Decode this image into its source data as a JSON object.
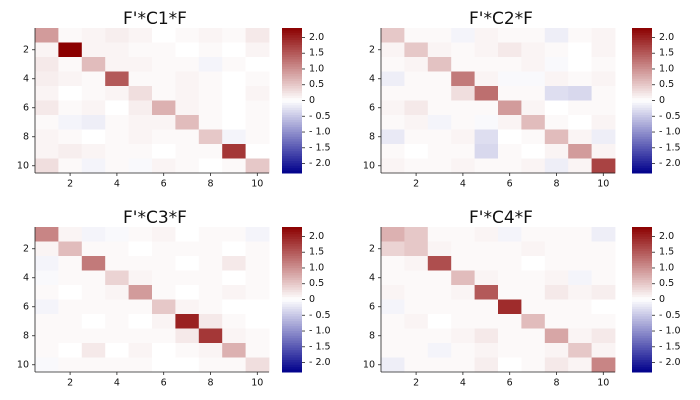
{
  "chart_data": [
    {
      "type": "heatmap",
      "title": "F'*C1*F",
      "x_ticks": [
        "2",
        "4",
        "6",
        "8",
        "10"
      ],
      "y_ticks": [
        "2",
        "4",
        "6",
        "8",
        "10"
      ],
      "colorbar_ticks": [
        "2.0",
        "1.5",
        "1.0",
        "0.5",
        "0",
        "- 0.5",
        "- 1.0",
        "- 1.5",
        "- 2.0"
      ],
      "zlim": [
        -2.3,
        2.3
      ],
      "colormap": [
        "#00008b",
        "#ffffff",
        "#8b0000"
      ],
      "matrix": [
        [
          0.9,
          0.05,
          0.1,
          0.15,
          0.1,
          0.0,
          0.05,
          0.1,
          0.05,
          0.2
        ],
        [
          0.1,
          2.3,
          0.1,
          0.1,
          0.05,
          0.05,
          0.0,
          0.05,
          0.0,
          0.1
        ],
        [
          0.2,
          0.05,
          0.6,
          0.1,
          0.1,
          0.05,
          0.05,
          -0.1,
          0.05,
          0.0
        ],
        [
          0.15,
          0.1,
          0.05,
          1.5,
          0.05,
          0.05,
          0.1,
          0.05,
          0.0,
          0.05
        ],
        [
          0.1,
          0.0,
          0.05,
          0.1,
          0.3,
          0.05,
          0.1,
          0.05,
          0.0,
          0.1
        ],
        [
          0.2,
          0.05,
          0.1,
          0.0,
          0.15,
          0.7,
          0.1,
          0.05,
          0.0,
          0.05
        ],
        [
          0.05,
          -0.1,
          -0.15,
          0.05,
          0.1,
          0.1,
          0.6,
          0.05,
          0.0,
          0.05
        ],
        [
          0.1,
          0.05,
          0.0,
          0.05,
          0.1,
          0.05,
          0.05,
          0.5,
          -0.1,
          0.05
        ],
        [
          0.1,
          0.15,
          0.1,
          0.05,
          0.05,
          0.0,
          0.05,
          0.05,
          1.8,
          0.0
        ],
        [
          0.3,
          0.05,
          -0.1,
          0.05,
          -0.05,
          0.1,
          0.05,
          0.0,
          0.05,
          0.5
        ]
      ]
    },
    {
      "type": "heatmap",
      "title": "F'*C2*F",
      "x_ticks": [
        "2",
        "4",
        "6",
        "8",
        "10"
      ],
      "y_ticks": [
        "2",
        "4",
        "6",
        "8",
        "10"
      ],
      "colorbar_ticks": [
        "2.0",
        "1.5",
        "1.0",
        "0.5",
        "0",
        "- 0.5",
        "- 1.0",
        "- 1.5",
        "- 2.0"
      ],
      "zlim": [
        -2.3,
        2.3
      ],
      "colormap": [
        "#00008b",
        "#ffffff",
        "#8b0000"
      ],
      "matrix": [
        [
          0.5,
          0.05,
          0.05,
          -0.1,
          0.1,
          0.05,
          0.05,
          -0.15,
          0.05,
          0.1
        ],
        [
          0.1,
          0.5,
          0.1,
          0.05,
          0.1,
          0.2,
          0.1,
          0.05,
          0.0,
          0.1
        ],
        [
          0.05,
          0.1,
          0.55,
          0.05,
          0.05,
          0.05,
          0.1,
          -0.05,
          0.0,
          0.05
        ],
        [
          -0.15,
          0.05,
          0.05,
          1.2,
          0.1,
          -0.05,
          -0.05,
          0.1,
          0.05,
          0.1
        ],
        [
          0.05,
          0.05,
          0.05,
          0.3,
          1.3,
          0.05,
          0.05,
          -0.3,
          -0.35,
          0.05
        ],
        [
          0.1,
          0.2,
          0.05,
          0.05,
          0.05,
          0.9,
          0.1,
          0.0,
          0.05,
          0.05
        ],
        [
          0.05,
          0.1,
          -0.1,
          0.05,
          -0.05,
          0.1,
          0.6,
          0.05,
          0.0,
          0.1
        ],
        [
          -0.2,
          0.05,
          0.05,
          0.1,
          -0.3,
          0.0,
          0.05,
          0.6,
          0.1,
          -0.15
        ],
        [
          0.05,
          0.0,
          0.05,
          0.05,
          -0.35,
          0.05,
          0.0,
          0.1,
          0.9,
          0.1
        ],
        [
          0.1,
          0.05,
          0.05,
          0.1,
          0.05,
          0.05,
          0.1,
          -0.15,
          0.1,
          1.7
        ]
      ]
    },
    {
      "type": "heatmap",
      "title": "F'*C3*F",
      "x_ticks": [
        "2",
        "4",
        "6",
        "8",
        "10"
      ],
      "y_ticks": [
        "2",
        "4",
        "6",
        "8",
        "10"
      ],
      "colorbar_ticks": [
        "2.0",
        "1.5",
        "1.0",
        "0.5",
        "0",
        "- 0.5",
        "- 1.0",
        "- 1.5",
        "- 2.0"
      ],
      "zlim": [
        -2.3,
        2.3
      ],
      "colormap": [
        "#00008b",
        "#ffffff",
        "#8b0000"
      ],
      "matrix": [
        [
          1.1,
          0.1,
          -0.1,
          -0.05,
          0.05,
          0.1,
          0.0,
          0.05,
          0.05,
          -0.1
        ],
        [
          0.1,
          0.6,
          0.05,
          0.05,
          0.0,
          0.05,
          0.05,
          0.05,
          0.0,
          0.05
        ],
        [
          -0.1,
          0.05,
          1.2,
          0.05,
          0.05,
          0.05,
          0.0,
          0.05,
          0.2,
          0.05
        ],
        [
          -0.05,
          0.05,
          0.05,
          0.4,
          0.1,
          0.05,
          0.05,
          0.05,
          0.0,
          0.05
        ],
        [
          0.05,
          0.0,
          0.05,
          0.1,
          0.9,
          0.05,
          0.0,
          0.05,
          0.1,
          0.05
        ],
        [
          -0.1,
          0.05,
          0.05,
          0.05,
          0.05,
          0.5,
          0.1,
          0.05,
          0.0,
          0.0
        ],
        [
          0.05,
          0.05,
          0.0,
          0.05,
          0.0,
          0.1,
          2.0,
          0.2,
          0.05,
          0.0
        ],
        [
          0.05,
          0.05,
          0.05,
          0.05,
          0.05,
          0.05,
          0.2,
          1.8,
          0.1,
          0.05
        ],
        [
          0.05,
          0.0,
          0.2,
          0.0,
          0.1,
          0.0,
          0.05,
          0.1,
          0.7,
          0.05
        ],
        [
          -0.05,
          0.05,
          0.05,
          0.05,
          0.05,
          0.0,
          0.0,
          0.05,
          0.05,
          0.3
        ]
      ]
    },
    {
      "type": "heatmap",
      "title": "F'*C4*F",
      "x_ticks": [
        "2",
        "4",
        "6",
        "8",
        "10"
      ],
      "y_ticks": [
        "2",
        "4",
        "6",
        "8",
        "10"
      ],
      "colorbar_ticks": [
        "2.0",
        "1.5",
        "1.0",
        "0.5",
        "0",
        "- 0.5",
        "- 1.0",
        "- 1.5",
        "- 2.0"
      ],
      "zlim": [
        -2.3,
        2.3
      ],
      "colormap": [
        "#00008b",
        "#ffffff",
        "#8b0000"
      ],
      "matrix": [
        [
          0.7,
          0.5,
          0.05,
          0.05,
          0.1,
          -0.1,
          0.05,
          0.05,
          0.05,
          -0.15
        ],
        [
          0.4,
          0.5,
          0.1,
          0.05,
          0.05,
          0.05,
          0.1,
          0.05,
          0.05,
          0.05
        ],
        [
          0.05,
          0.1,
          1.6,
          0.05,
          0.05,
          0.05,
          0.0,
          0.05,
          0.05,
          0.05
        ],
        [
          0.05,
          0.05,
          0.05,
          0.6,
          0.1,
          0.05,
          0.05,
          0.1,
          -0.1,
          0.05
        ],
        [
          0.1,
          0.05,
          0.05,
          0.1,
          1.5,
          0.05,
          0.05,
          0.2,
          0.1,
          0.15
        ],
        [
          -0.1,
          0.05,
          0.05,
          0.05,
          0.05,
          1.9,
          0.05,
          0.05,
          0.05,
          0.0
        ],
        [
          0.05,
          0.1,
          0.0,
          0.05,
          0.05,
          0.05,
          0.6,
          0.05,
          0.05,
          0.05
        ],
        [
          0.05,
          0.05,
          0.05,
          0.1,
          0.2,
          0.05,
          0.05,
          0.8,
          0.1,
          0.2
        ],
        [
          0.05,
          0.05,
          -0.1,
          0.05,
          0.1,
          0.05,
          0.05,
          0.1,
          0.5,
          0.1
        ],
        [
          -0.15,
          0.05,
          0.05,
          0.05,
          0.15,
          0.0,
          0.05,
          0.2,
          0.1,
          1.1
        ]
      ]
    }
  ]
}
